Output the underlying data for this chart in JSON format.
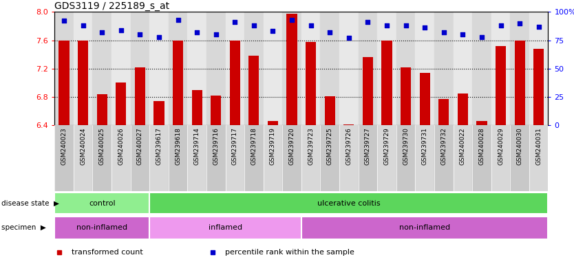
{
  "title": "GDS3119 / 225189_s_at",
  "samples": [
    "GSM240023",
    "GSM240024",
    "GSM240025",
    "GSM240026",
    "GSM240027",
    "GSM239617",
    "GSM239618",
    "GSM239714",
    "GSM239716",
    "GSM239717",
    "GSM239718",
    "GSM239719",
    "GSM239720",
    "GSM239723",
    "GSM239725",
    "GSM239726",
    "GSM239727",
    "GSM239729",
    "GSM239730",
    "GSM239731",
    "GSM239732",
    "GSM240022",
    "GSM240028",
    "GSM240029",
    "GSM240030",
    "GSM240031"
  ],
  "transformed_count": [
    7.6,
    7.6,
    6.84,
    7.0,
    7.22,
    6.74,
    7.6,
    6.9,
    6.82,
    7.6,
    7.38,
    6.46,
    7.97,
    7.58,
    6.81,
    6.41,
    7.36,
    7.6,
    7.22,
    7.14,
    6.77,
    6.85,
    6.46,
    7.52,
    7.6,
    7.48
  ],
  "percentile_rank": [
    92,
    88,
    82,
    84,
    80,
    78,
    93,
    82,
    80,
    91,
    88,
    83,
    93,
    88,
    82,
    77,
    91,
    88,
    88,
    86,
    82,
    80,
    78,
    88,
    90,
    87
  ],
  "bar_color": "#cc0000",
  "dot_color": "#0000cc",
  "ylim_left": [
    6.4,
    8.0
  ],
  "ylim_right": [
    0,
    100
  ],
  "yticks_left": [
    6.4,
    6.8,
    7.2,
    7.6,
    8.0
  ],
  "yticks_right": [
    0,
    25,
    50,
    75,
    100
  ],
  "yticklabels_right": [
    "0",
    "25",
    "50",
    "75",
    "100%"
  ],
  "grid_lines": [
    6.8,
    7.2,
    7.6
  ],
  "disease_state_groups": [
    {
      "label": "control",
      "start": 0,
      "end": 5,
      "color": "#90ee90"
    },
    {
      "label": "ulcerative colitis",
      "start": 5,
      "end": 26,
      "color": "#5cd65c"
    }
  ],
  "specimen_groups": [
    {
      "label": "non-inflamed",
      "start": 0,
      "end": 5,
      "color": "#cc66cc"
    },
    {
      "label": "inflamed",
      "start": 5,
      "end": 13,
      "color": "#ee99ee"
    },
    {
      "label": "non-inflamed",
      "start": 13,
      "end": 26,
      "color": "#cc66cc"
    }
  ],
  "legend_items": [
    {
      "label": "transformed count",
      "color": "#cc0000"
    },
    {
      "label": "percentile rank within the sample",
      "color": "#0000cc"
    }
  ],
  "label_disease": "disease state",
  "label_specimen": "specimen",
  "plot_bg": "#e8e8e8"
}
